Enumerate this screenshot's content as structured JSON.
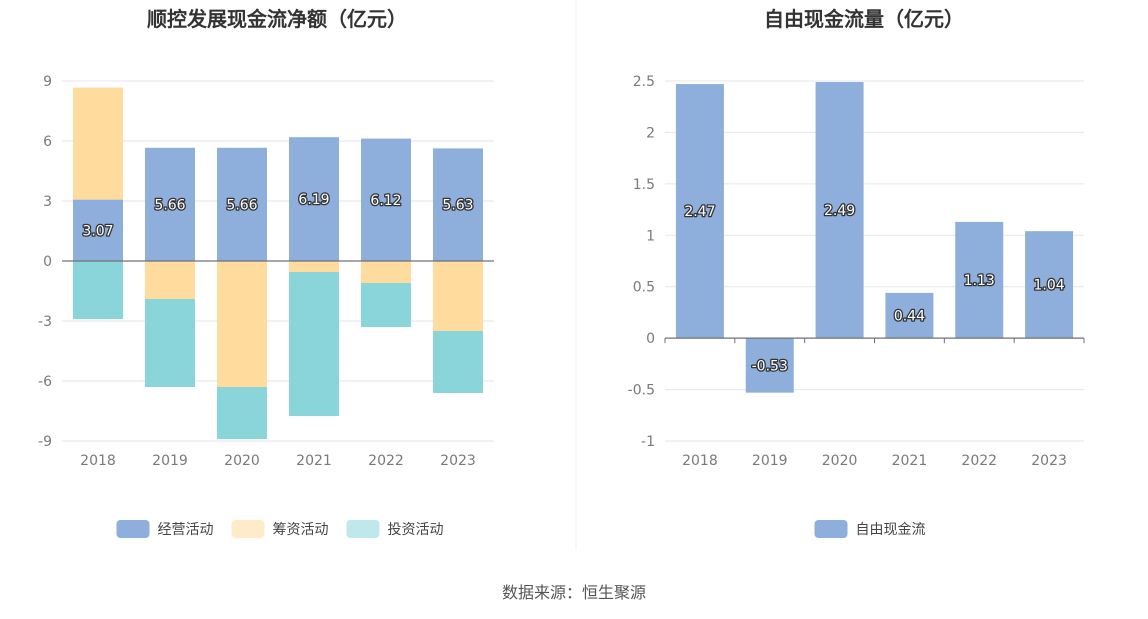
{
  "chart_data": [
    {
      "type": "bar",
      "stacked": true,
      "title": "顺控发展现金流净额（亿元）",
      "categories": [
        "2018",
        "2019",
        "2020",
        "2021",
        "2022",
        "2023"
      ],
      "ylim": [
        -9,
        9
      ],
      "yticks": [
        9,
        6,
        3,
        0,
        -3,
        -6,
        -9
      ],
      "yticklabels": [
        "9",
        "6",
        "3",
        "0",
        "-3",
        "-6",
        "-9"
      ],
      "grid": true,
      "legend_position": "bottom-center",
      "series": [
        {
          "name": "经营活动",
          "color": "#8eaedb",
          "values": [
            3.07,
            5.66,
            5.66,
            6.19,
            6.12,
            5.63
          ],
          "data_labels": [
            "3.07",
            "5.66",
            "5.66",
            "6.19",
            "6.12",
            "5.63"
          ]
        },
        {
          "name": "筹资活动",
          "color": "#ffdb9e",
          "values": [
            5.6,
            -1.9,
            -6.3,
            -0.55,
            -1.1,
            -3.5
          ]
        },
        {
          "name": "投资活动",
          "color": "#89d5d9",
          "values": [
            -2.9,
            -4.4,
            -2.6,
            -7.2,
            -2.2,
            -3.1
          ]
        }
      ]
    },
    {
      "type": "bar",
      "title": "自由现金流量（亿元）",
      "categories": [
        "2018",
        "2019",
        "2020",
        "2021",
        "2022",
        "2023"
      ],
      "ylim": [
        -1,
        2.5
      ],
      "yticks": [
        2.5,
        2,
        1.5,
        1,
        0.5,
        0,
        -0.5,
        -1
      ],
      "yticklabels": [
        "2.5",
        "2",
        "1.5",
        "1",
        "0.5",
        "0",
        "-0.5",
        "-1"
      ],
      "grid": true,
      "legend_position": "bottom-center",
      "series": [
        {
          "name": "自由现金流",
          "color": "#8eaedb",
          "values": [
            2.47,
            -0.53,
            2.49,
            0.44,
            1.13,
            1.04
          ],
          "data_labels": [
            "2.47",
            "-0.53",
            "2.49",
            "0.44",
            "1.13",
            "1.04"
          ]
        }
      ]
    }
  ],
  "source_text": "数据来源：恒生聚源",
  "colors": {
    "grid": "#e6e6ee",
    "zero_axis": "#6e7079",
    "divider": "#f0f0f0"
  }
}
